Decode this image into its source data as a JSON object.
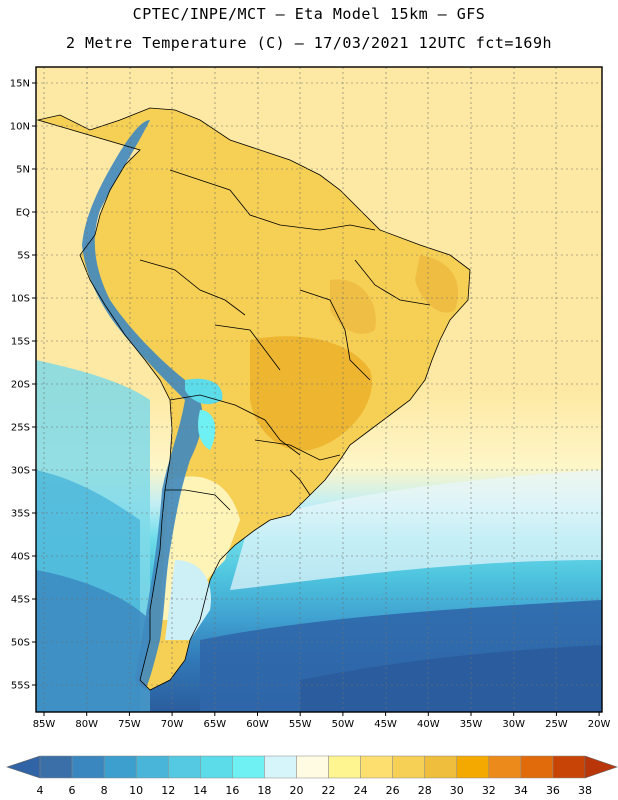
{
  "header": {
    "line1": "CPTEC/INPE/MCT –  Eta Model 15km – GFS",
    "line2": "2 Metre Temperature (C) – 17/03/2021 12UTC fct=169h"
  },
  "map": {
    "lat_labels": [
      "15N",
      "10N",
      "5N",
      "EQ",
      "5S",
      "10S",
      "15S",
      "20S",
      "25S",
      "30S",
      "35S",
      "40S",
      "45S",
      "50S",
      "55S"
    ],
    "lon_labels": [
      "85W",
      "80W",
      "75W",
      "70W",
      "65W",
      "60W",
      "55W",
      "50W",
      "45W",
      "40W",
      "35W",
      "30W",
      "25W",
      "20W"
    ],
    "colors": {
      "ocean_warm": "#fce89a",
      "land_warm": "#f6cf55",
      "land_hot": "#eeb530",
      "cold_deep": "#2b5d9e",
      "andes": "#3f88bf"
    }
  },
  "colorbar": {
    "levels": [
      "4",
      "6",
      "8",
      "10",
      "12",
      "14",
      "16",
      "18",
      "20",
      "22",
      "24",
      "26",
      "28",
      "30",
      "32",
      "34",
      "36",
      "38"
    ],
    "colors": [
      "#3a6fa8",
      "#3a86bf",
      "#3d9fcd",
      "#48b5d9",
      "#55c9e2",
      "#5cdbe9",
      "#6ff0f2",
      "#d6f5fa",
      "#fffbe3",
      "#fef490",
      "#fcdf6f",
      "#f6cf55",
      "#eebe3c",
      "#f4a900",
      "#ec8b1c",
      "#e16a0a",
      "#c84406"
    ]
  }
}
